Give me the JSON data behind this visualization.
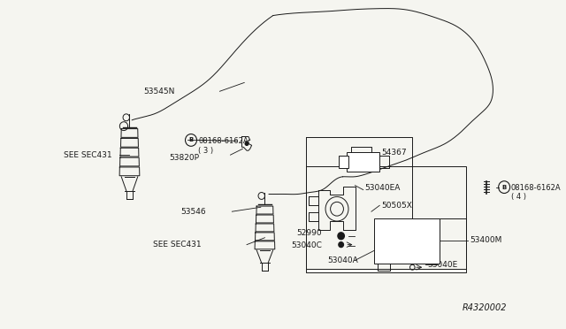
{
  "bg_color": "#f5f5f0",
  "fig_width": 6.4,
  "fig_height": 3.72,
  "dpi": 100,
  "label_texts": {
    "53545N": "53545N",
    "B_0816B_6162A_3": "08168-6162A\n( 3 )",
    "53820P": "53820P",
    "53546": "53546",
    "SEE_SEC431_top": "SEE SEC431",
    "SEE_SEC431_bot": "SEE SEC431",
    "54367": "54367",
    "53040EA": "53040EA",
    "50505X": "50505X",
    "53400M": "53400M",
    "B_0816B_6162A_4": "08168-6162A\n( 4 )",
    "52990": "52990",
    "53040C": "53040C",
    "53040A": "53040A",
    "53040E": "53040E"
  },
  "ref_label": "R4320002"
}
